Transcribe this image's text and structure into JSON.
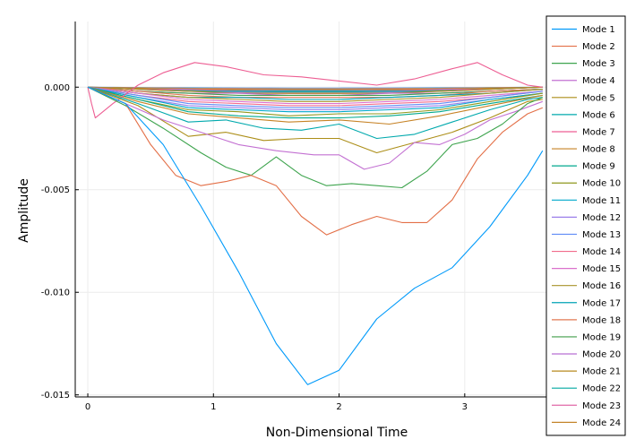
{
  "chart_data": {
    "type": "line",
    "title": "",
    "xlabel": "Non-Dimensional Time",
    "ylabel": "Amplitude",
    "xlim": [
      -0.1,
      3.65
    ],
    "ylim": [
      -0.0151,
      0.0032
    ],
    "x_ticks": [
      0,
      1,
      2,
      3
    ],
    "x_tick_labels": [
      "0",
      "1",
      "2",
      "3"
    ],
    "y_ticks": [
      0.0,
      -0.005,
      -0.01,
      -0.015
    ],
    "y_tick_labels": [
      "0.000",
      "-0.005",
      "-0.010",
      "-0.015"
    ],
    "grid": true,
    "legend_position": "right",
    "series": [
      {
        "name": "Mode 1",
        "color": "#009AFA",
        "x": [
          0,
          0.3,
          0.6,
          0.9,
          1.2,
          1.5,
          1.75,
          2.0,
          2.3,
          2.6,
          2.9,
          3.2,
          3.5,
          3.62
        ],
        "y": [
          0,
          -0.0008,
          -0.0028,
          -0.0058,
          -0.009,
          -0.0125,
          -0.0145,
          -0.0138,
          -0.0113,
          -0.0098,
          -0.0088,
          -0.0068,
          -0.0043,
          -0.0031
        ]
      },
      {
        "name": "Mode 2",
        "color": "#E36F47",
        "x": [
          0,
          0.3,
          0.5,
          0.7,
          0.9,
          1.1,
          1.3,
          1.5,
          1.7,
          1.9,
          2.1,
          2.3,
          2.5,
          2.7,
          2.9,
          3.1,
          3.3,
          3.5,
          3.62
        ],
        "y": [
          0,
          -0.0008,
          -0.0028,
          -0.0043,
          -0.0048,
          -0.0046,
          -0.0043,
          -0.0048,
          -0.0063,
          -0.0072,
          -0.0067,
          -0.0063,
          -0.0066,
          -0.0066,
          -0.0055,
          -0.0035,
          -0.0022,
          -0.0013,
          -0.001
        ]
      },
      {
        "name": "Mode 3",
        "color": "#3EA44E",
        "x": [
          0,
          0.3,
          0.6,
          0.9,
          1.1,
          1.3,
          1.5,
          1.7,
          1.9,
          2.1,
          2.3,
          2.5,
          2.7,
          2.9,
          3.1,
          3.3,
          3.5,
          3.62
        ],
        "y": [
          0,
          -0.0009,
          -0.002,
          -0.0032,
          -0.0039,
          -0.0043,
          -0.0034,
          -0.0043,
          -0.0048,
          -0.0047,
          -0.0048,
          -0.0049,
          -0.0041,
          -0.0028,
          -0.0025,
          -0.0018,
          -0.0008,
          -0.0005
        ]
      },
      {
        "name": "Mode 4",
        "color": "#C371D2",
        "x": [
          0,
          0.3,
          0.6,
          0.9,
          1.2,
          1.5,
          1.8,
          2.0,
          2.2,
          2.4,
          2.6,
          2.8,
          3.0,
          3.2,
          3.4,
          3.62
        ],
        "y": [
          0,
          -0.0008,
          -0.0016,
          -0.0022,
          -0.0028,
          -0.0031,
          -0.0033,
          -0.0033,
          -0.004,
          -0.0037,
          -0.0027,
          -0.0028,
          -0.0023,
          -0.0016,
          -0.0012,
          -0.0007
        ]
      },
      {
        "name": "Mode 5",
        "color": "#AC8E18",
        "x": [
          0,
          0.4,
          0.8,
          1.1,
          1.4,
          1.7,
          2.0,
          2.3,
          2.6,
          2.9,
          3.2,
          3.5,
          3.62
        ],
        "y": [
          0,
          -0.0009,
          -0.0024,
          -0.0022,
          -0.0026,
          -0.0025,
          -0.0025,
          -0.0032,
          -0.0027,
          -0.0022,
          -0.0015,
          -0.0007,
          -0.0006
        ]
      },
      {
        "name": "Mode 6",
        "color": "#00A9AD",
        "x": [
          0,
          0.4,
          0.8,
          1.1,
          1.4,
          1.7,
          2.0,
          2.3,
          2.6,
          2.9,
          3.2,
          3.5,
          3.62
        ],
        "y": [
          0,
          -0.0008,
          -0.0017,
          -0.0016,
          -0.002,
          -0.0021,
          -0.0018,
          -0.0025,
          -0.0023,
          -0.0017,
          -0.0011,
          -0.0006,
          -0.0005
        ]
      },
      {
        "name": "Mode 7",
        "color": "#ED5E93",
        "x": [
          0,
          0.03,
          0.06,
          0.2,
          0.4,
          0.6,
          0.85,
          1.1,
          1.4,
          1.7,
          2.0,
          2.3,
          2.6,
          2.9,
          3.1,
          3.3,
          3.5,
          3.62
        ],
        "y": [
          0,
          -0.0008,
          -0.0015,
          -0.0008,
          0.0001,
          0.0007,
          0.0012,
          0.001,
          0.0006,
          0.0005,
          0.0003,
          0.0001,
          0.0004,
          0.0009,
          0.0012,
          0.0006,
          0.0001,
          0
        ]
      },
      {
        "name": "Mode 8",
        "color": "#C68225",
        "x": [
          0,
          0.4,
          0.8,
          1.2,
          1.6,
          2.0,
          2.4,
          2.8,
          3.2,
          3.62
        ],
        "y": [
          0,
          -0.0007,
          -0.0013,
          -0.0015,
          -0.0017,
          -0.0016,
          -0.0018,
          -0.0014,
          -0.0009,
          -0.0004
        ]
      },
      {
        "name": "Mode 9",
        "color": "#00A98D",
        "x": [
          0,
          0.4,
          0.8,
          1.2,
          1.6,
          2.0,
          2.4,
          2.8,
          3.2,
          3.62
        ],
        "y": [
          0,
          -0.0006,
          -0.0012,
          -0.0014,
          -0.0015,
          -0.0015,
          -0.0014,
          -0.0012,
          -0.0008,
          -0.0004
        ]
      },
      {
        "name": "Mode 10",
        "color": "#8E971D",
        "x": [
          0,
          0.4,
          0.8,
          1.2,
          1.6,
          2.0,
          2.4,
          2.8,
          3.2,
          3.62
        ],
        "y": [
          0,
          -0.0006,
          -0.0011,
          -0.0012,
          -0.0014,
          -0.0013,
          -0.0013,
          -0.0011,
          -0.0007,
          -0.0003
        ]
      },
      {
        "name": "Mode 11",
        "color": "#00A8CB",
        "x": [
          0,
          0.4,
          0.8,
          1.2,
          1.6,
          2.0,
          2.4,
          2.8,
          3.2,
          3.62
        ],
        "y": [
          0,
          -0.0005,
          -0.001,
          -0.0011,
          -0.0012,
          -0.0012,
          -0.0011,
          -0.001,
          -0.0006,
          -0.0003
        ]
      },
      {
        "name": "Mode 12",
        "color": "#9B7FE9",
        "x": [
          0,
          0.4,
          0.8,
          1.2,
          1.6,
          2.0,
          2.4,
          2.8,
          3.2,
          3.62
        ],
        "y": [
          0,
          -0.0005,
          -0.0009,
          -0.001,
          -0.0011,
          -0.0011,
          -0.001,
          -0.0009,
          -0.0006,
          -0.0003
        ]
      },
      {
        "name": "Mode 13",
        "color": "#618DF6",
        "x": [
          0,
          0.4,
          0.8,
          1.2,
          1.6,
          2.0,
          2.4,
          2.8,
          3.2,
          3.62
        ],
        "y": [
          0,
          -0.0004,
          -0.0008,
          -0.0009,
          -0.001,
          -0.001,
          -0.0009,
          -0.0008,
          -0.0005,
          -0.0002
        ]
      },
      {
        "name": "Mode 14",
        "color": "#F16C8C",
        "x": [
          0,
          0.4,
          0.8,
          1.2,
          1.6,
          2.0,
          2.4,
          2.8,
          3.2,
          3.62
        ],
        "y": [
          0,
          -0.0004,
          -0.0007,
          -0.0008,
          -0.0009,
          -0.0009,
          -0.0008,
          -0.0007,
          -0.0005,
          -0.0002
        ]
      },
      {
        "name": "Mode 15",
        "color": "#DA71CC",
        "x": [
          0,
          0.4,
          0.8,
          1.2,
          1.6,
          2.0,
          2.4,
          2.8,
          3.2,
          3.62
        ],
        "y": [
          0,
          -0.0003,
          -0.0006,
          -0.0007,
          -0.0008,
          -0.0008,
          -0.0007,
          -0.0006,
          -0.0004,
          -0.0002
        ]
      },
      {
        "name": "Mode 16",
        "color": "#A8932A",
        "x": [
          0,
          0.4,
          0.8,
          1.2,
          1.6,
          2.0,
          2.4,
          2.8,
          3.2,
          3.62
        ],
        "y": [
          0,
          -0.0003,
          -0.0005,
          -0.0006,
          -0.0007,
          -0.0007,
          -0.0006,
          -0.0005,
          -0.0003,
          -0.0001
        ]
      },
      {
        "name": "Mode 17",
        "color": "#00A2B5",
        "x": [
          0,
          0.4,
          0.8,
          1.2,
          1.6,
          2.0,
          2.4,
          2.8,
          3.2,
          3.62
        ],
        "y": [
          0,
          -0.0003,
          -0.0005,
          -0.0005,
          -0.0006,
          -0.0006,
          -0.0005,
          -0.0004,
          -0.0003,
          -0.0001
        ]
      },
      {
        "name": "Mode 18",
        "color": "#E27853",
        "x": [
          0,
          0.4,
          0.8,
          1.2,
          1.6,
          2.0,
          2.4,
          2.8,
          3.2,
          3.62
        ],
        "y": [
          0,
          -0.0002,
          -0.0004,
          -0.0005,
          -0.0005,
          -0.0005,
          -0.0005,
          -0.0004,
          -0.0002,
          -0.0001
        ]
      },
      {
        "name": "Mode 19",
        "color": "#409E4A",
        "x": [
          0,
          0.4,
          0.8,
          1.2,
          1.6,
          2.0,
          2.4,
          2.8,
          3.2,
          3.62
        ],
        "y": [
          0,
          -0.0002,
          -0.0003,
          -0.0004,
          -0.0004,
          -0.0004,
          -0.0004,
          -0.0003,
          -0.0002,
          -0.0001
        ]
      },
      {
        "name": "Mode 20",
        "color": "#B76FD4",
        "x": [
          0,
          0.4,
          0.8,
          1.2,
          1.6,
          2.0,
          2.4,
          2.8,
          3.2,
          3.62
        ],
        "y": [
          0,
          -0.0002,
          -0.0003,
          -0.0003,
          -0.0004,
          -0.0004,
          -0.0003,
          -0.0003,
          -0.0002,
          -0.0001
        ]
      },
      {
        "name": "Mode 21",
        "color": "#B78A1E",
        "x": [
          0,
          0.4,
          0.8,
          1.2,
          1.6,
          2.0,
          2.4,
          2.8,
          3.2,
          3.62
        ],
        "y": [
          0,
          -0.0001,
          -0.0002,
          -0.0003,
          -0.0003,
          -0.0003,
          -0.0003,
          -0.0002,
          -0.0001,
          0
        ]
      },
      {
        "name": "Mode 22",
        "color": "#00A8A0",
        "x": [
          0,
          0.4,
          0.8,
          1.2,
          1.6,
          2.0,
          2.4,
          2.8,
          3.2,
          3.62
        ],
        "y": [
          0,
          -0.0001,
          -0.0002,
          -0.0002,
          -0.0002,
          -0.0002,
          -0.0002,
          -0.0002,
          -0.0001,
          0
        ]
      },
      {
        "name": "Mode 23",
        "color": "#E168A8",
        "x": [
          0,
          0.4,
          0.8,
          1.2,
          1.6,
          2.0,
          2.4,
          2.8,
          3.2,
          3.62
        ],
        "y": [
          0,
          -0.0001,
          -0.0001,
          -0.0002,
          -0.0002,
          -0.0002,
          -0.0002,
          -0.0001,
          -0.0001,
          0
        ]
      },
      {
        "name": "Mode 24",
        "color": "#C4852A",
        "x": [
          0,
          0.4,
          0.8,
          1.2,
          1.6,
          2.0,
          2.4,
          2.8,
          3.2,
          3.62
        ],
        "y": [
          0,
          -5e-05,
          -0.0001,
          -0.0001,
          -0.0001,
          -0.0001,
          -0.0001,
          -0.0001,
          -5e-05,
          0
        ]
      }
    ],
    "extra_series_colors": [
      "#5CA0E6",
      "#E07E5E",
      "#4FA64F",
      "#B57BD8",
      "#A99327",
      "#2AA9B0",
      "#8D99E5",
      "#E0859E"
    ]
  }
}
